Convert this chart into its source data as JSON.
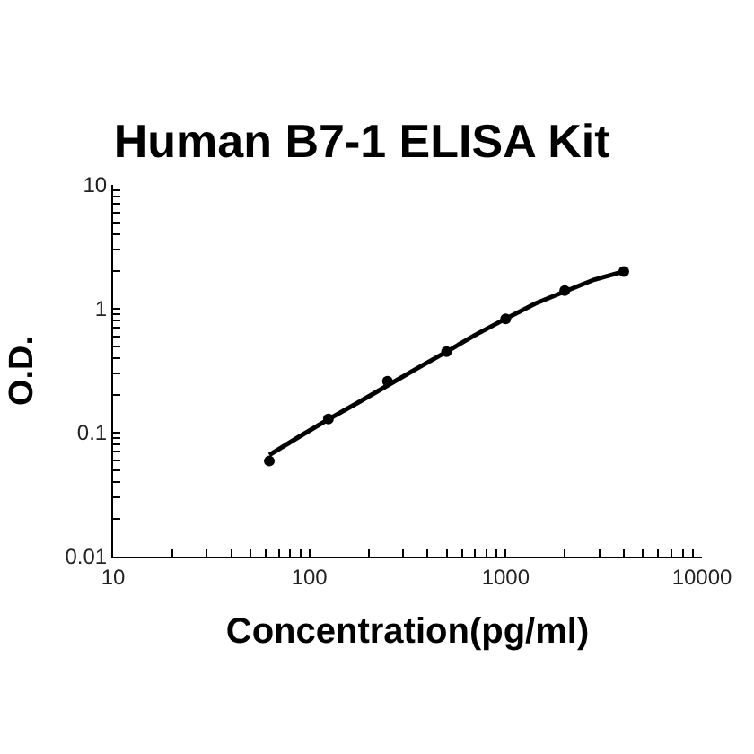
{
  "chart_data": {
    "type": "scatter",
    "title": "Human B7-1 ELISA Kit",
    "xlabel": "Concentration(pg/ml)",
    "ylabel": "O.D.",
    "log": "xy",
    "xlim": [
      10,
      10000
    ],
    "ylim": [
      0.01,
      10
    ],
    "xticks": [
      10,
      {
        "value": 20,
        "label": null
      },
      {
        "value": 30,
        "label": null
      },
      {
        "value": 40,
        "label": null
      },
      {
        "value": 50,
        "label": null
      },
      {
        "value": 60,
        "label": null
      },
      {
        "value": 70,
        "label": null
      },
      {
        "value": 80,
        "label": null
      },
      {
        "value": 90,
        "label": null
      },
      100,
      {
        "value": 200,
        "label": null
      },
      {
        "value": 300,
        "label": null
      },
      {
        "value": 400,
        "label": null
      },
      {
        "value": 500,
        "label": null
      },
      {
        "value": 600,
        "label": null
      },
      {
        "value": 700,
        "label": null
      },
      {
        "value": 800,
        "label": null
      },
      {
        "value": 900,
        "label": null
      },
      1000,
      {
        "value": 2000,
        "label": null
      },
      {
        "value": 3000,
        "label": null
      },
      {
        "value": 4000,
        "label": null
      },
      {
        "value": 5000,
        "label": null
      },
      {
        "value": 6000,
        "label": null
      },
      {
        "value": 7000,
        "label": null
      },
      {
        "value": 8000,
        "label": null
      },
      {
        "value": 9000,
        "label": null
      },
      10000
    ],
    "yticks": [
      0.01,
      {
        "value": 0.02,
        "label": null
      },
      {
        "value": 0.03,
        "label": null
      },
      {
        "value": 0.04,
        "label": null
      },
      {
        "value": 0.05,
        "label": null
      },
      {
        "value": 0.06,
        "label": null
      },
      {
        "value": 0.07,
        "label": null
      },
      {
        "value": 0.08,
        "label": null
      },
      {
        "value": 0.09,
        "label": null
      },
      0.1,
      {
        "value": 0.2,
        "label": null
      },
      {
        "value": 0.3,
        "label": null
      },
      {
        "value": 0.4,
        "label": null
      },
      {
        "value": 0.5,
        "label": null
      },
      {
        "value": 0.6,
        "label": null
      },
      {
        "value": 0.7,
        "label": null
      },
      {
        "value": 0.8,
        "label": null
      },
      {
        "value": 0.9,
        "label": null
      },
      1,
      {
        "value": 2,
        "label": null
      },
      {
        "value": 3,
        "label": null
      },
      {
        "value": 4,
        "label": null
      },
      {
        "value": 5,
        "label": null
      },
      {
        "value": 6,
        "label": null
      },
      {
        "value": 7,
        "label": null
      },
      {
        "value": 8,
        "label": null
      },
      {
        "value": 9,
        "label": null
      },
      10
    ],
    "grid": false,
    "marker": "circle",
    "series": [
      {
        "color": "#000000",
        "x": [
          62.5,
          125,
          250,
          500,
          1000,
          2000,
          4000
        ],
        "values": [
          0.059,
          0.129,
          0.26,
          0.45,
          0.83,
          1.4,
          2.0
        ]
      },
      {
        "type": "line",
        "marker": "none",
        "color": "#000000",
        "x": [
          62.5,
          88,
          125,
          177,
          250,
          354,
          500,
          707,
          1000,
          1414,
          2000,
          2828,
          4000
        ],
        "values": [
          0.066,
          0.092,
          0.128,
          0.175,
          0.24,
          0.33,
          0.45,
          0.62,
          0.83,
          1.1,
          1.38,
          1.72,
          2.0
        ]
      }
    ]
  }
}
